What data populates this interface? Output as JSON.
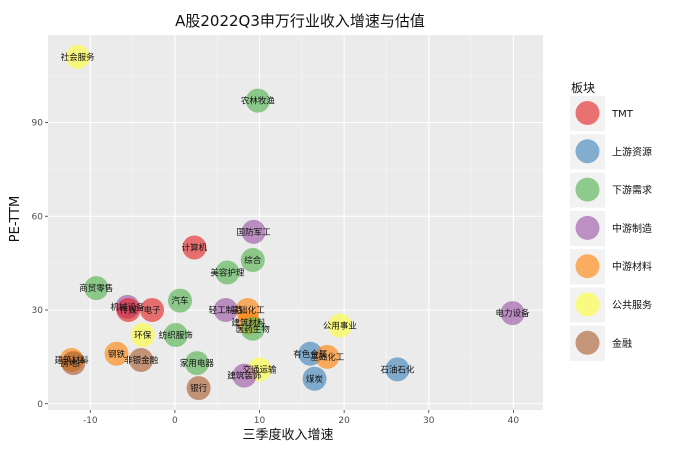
{
  "chart_data": {
    "type": "scatter",
    "title": "A股2022Q3申万行业收入增速与估值",
    "xlabel": "三季度收入增速",
    "ylabel": "PE-TTM",
    "xlim": [
      -15,
      43.5
    ],
    "ylim": [
      -2,
      118
    ],
    "xticks": [
      -10,
      0,
      10,
      20,
      30,
      40
    ],
    "yticks": [
      0,
      30,
      60,
      90
    ],
    "grid": true,
    "legend": {
      "title": "板块",
      "placement": "right",
      "items": [
        {
          "name": "TMT",
          "color": "#E41A1C"
        },
        {
          "name": "上游资源",
          "color": "#377EB8"
        },
        {
          "name": "下游需求",
          "color": "#4DAF4A"
        },
        {
          "name": "中游制造",
          "color": "#984EA3"
        },
        {
          "name": "中游材料",
          "color": "#FF7F00"
        },
        {
          "name": "公共服务",
          "color": "#FFFF33"
        },
        {
          "name": "金融",
          "color": "#A65628"
        }
      ]
    },
    "points": [
      {
        "label": "社会服务",
        "x": -11.5,
        "y": 111,
        "group": "公共服务"
      },
      {
        "label": "农林牧渔",
        "x": 9.8,
        "y": 97,
        "group": "下游需求"
      },
      {
        "label": "国防军工",
        "x": 9.3,
        "y": 55,
        "group": "中游制造"
      },
      {
        "label": "计算机",
        "x": 2.3,
        "y": 50,
        "group": "TMT"
      },
      {
        "label": "综合",
        "x": 9.2,
        "y": 46,
        "group": "下游需求"
      },
      {
        "label": "美容护理",
        "x": 6.2,
        "y": 42,
        "group": "下游需求"
      },
      {
        "label": "商贸零售",
        "x": -9.3,
        "y": 37,
        "group": "下游需求"
      },
      {
        "label": "汽车",
        "x": 0.6,
        "y": 33,
        "group": "下游需求"
      },
      {
        "label": "机械设备",
        "x": -5.6,
        "y": 31,
        "group": "中游制造"
      },
      {
        "label": "传媒",
        "x": -5.5,
        "y": 30,
        "group": "TMT"
      },
      {
        "label": "电子",
        "x": -2.7,
        "y": 30,
        "group": "TMT"
      },
      {
        "label": "轻工制造",
        "x": 6.0,
        "y": 30,
        "group": "中游制造"
      },
      {
        "label": "基础化工",
        "x": 8.6,
        "y": 30,
        "group": "中游材料"
      },
      {
        "label": "建筑材料",
        "x": 8.7,
        "y": 26,
        "group": "中游材料"
      },
      {
        "label": "医药生物",
        "x": 9.2,
        "y": 24,
        "group": "下游需求"
      },
      {
        "label": "公用事业",
        "x": 19.5,
        "y": 25,
        "group": "公共服务"
      },
      {
        "label": "电力设备",
        "x": 39.9,
        "y": 29,
        "group": "中游制造"
      },
      {
        "label": "环保",
        "x": -3.8,
        "y": 22,
        "group": "公共服务"
      },
      {
        "label": "纺织服饰",
        "x": 0.1,
        "y": 22,
        "group": "下游需求"
      },
      {
        "label": "钢铁",
        "x": -6.9,
        "y": 16,
        "group": "中游材料"
      },
      {
        "label": "非银金融",
        "x": -4.0,
        "y": 14,
        "group": "金融"
      },
      {
        "label": "建筑材料",
        "x": -12.2,
        "y": 14,
        "group": "中游材料"
      },
      {
        "label": "房地产",
        "x": -12.0,
        "y": 13,
        "group": "金融"
      },
      {
        "label": "家用电器",
        "x": 2.6,
        "y": 13,
        "group": "下游需求"
      },
      {
        "label": "有色金属",
        "x": 16.0,
        "y": 16,
        "group": "上游资源"
      },
      {
        "label": "基础化工",
        "x": 18.0,
        "y": 15,
        "group": "中游材料"
      },
      {
        "label": "石油石化",
        "x": 26.3,
        "y": 11,
        "group": "上游资源"
      },
      {
        "label": "交通运输",
        "x": 10.0,
        "y": 11,
        "group": "公共服务"
      },
      {
        "label": "建筑装饰",
        "x": 8.2,
        "y": 9,
        "group": "中游制造"
      },
      {
        "label": "煤炭",
        "x": 16.5,
        "y": 8,
        "group": "上游资源"
      },
      {
        "label": "银行",
        "x": 2.8,
        "y": 5,
        "group": "金融"
      }
    ]
  }
}
